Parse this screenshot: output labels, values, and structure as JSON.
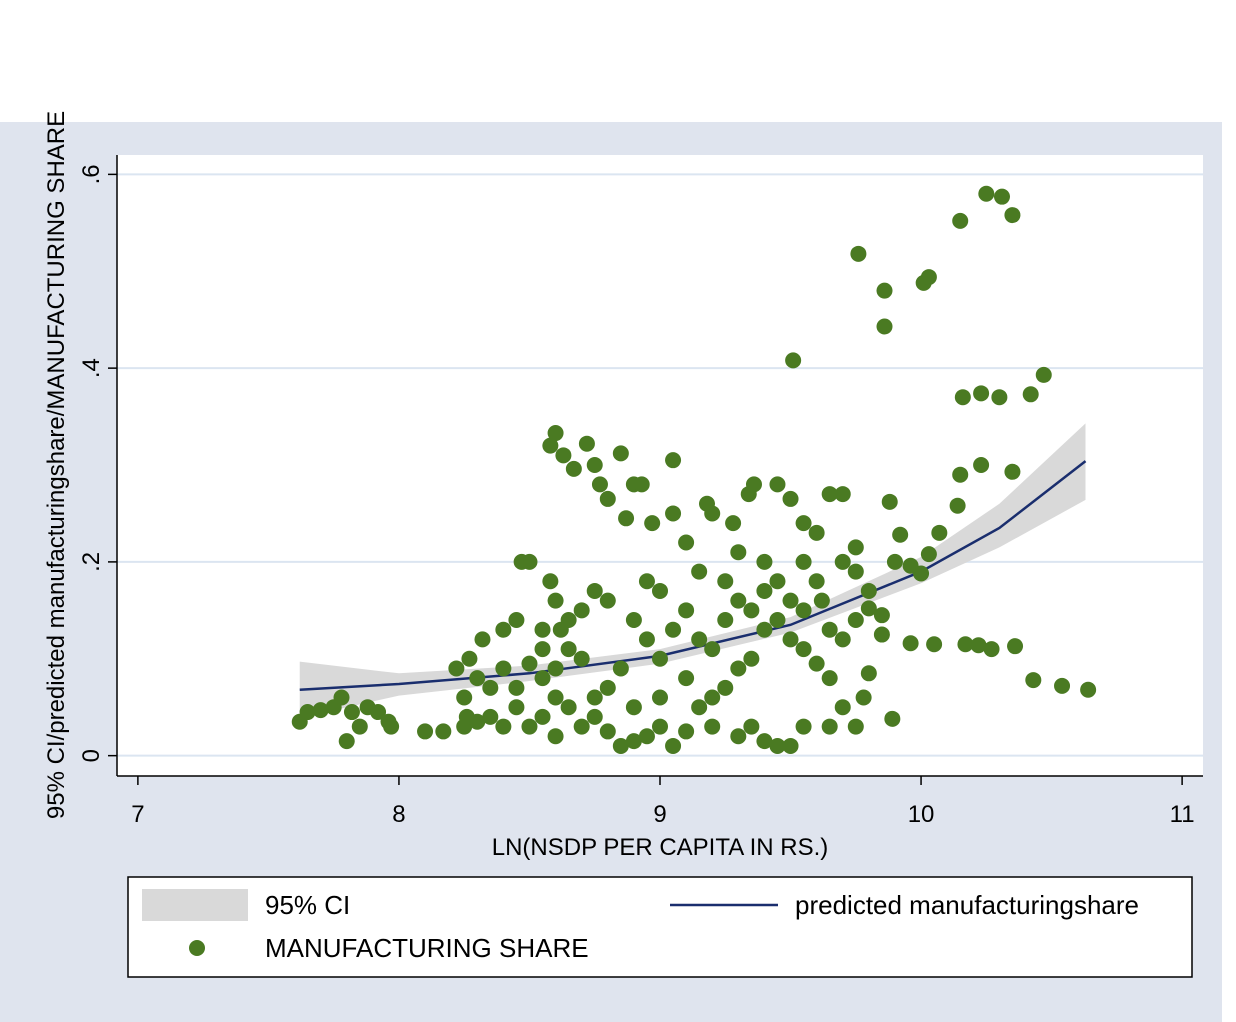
{
  "chart_data": {
    "type": "scatter",
    "x_label": "LN(NSDP PER CAPITA IN RS.)",
    "y_label": "95% CI/predicted manufacturingshare/MANUFACTURING SHARE",
    "xlim": [
      6.92,
      11.08
    ],
    "ylim": [
      -0.021,
      0.62
    ],
    "xticks": [
      7,
      8,
      9,
      10,
      11
    ],
    "yticks": [
      0,
      {
        "value": 0.2,
        "label": ".2"
      },
      {
        "value": 0.4,
        "label": ".4"
      },
      {
        "value": 0.6,
        "label": ".6"
      }
    ],
    "grid": true,
    "series": [
      {
        "name": "95% CI",
        "type": "band",
        "color": "#d9d9d9",
        "x": [
          7.62,
          8,
          8.5,
          9,
          9.5,
          10,
          10.3,
          10.63
        ],
        "upper": [
          0.097,
          0.085,
          0.093,
          0.11,
          0.143,
          0.205,
          0.26,
          0.343
        ],
        "lower": [
          0.039,
          0.062,
          0.077,
          0.095,
          0.127,
          0.178,
          0.215,
          0.264
        ]
      },
      {
        "name": "predicted manufacturingshare",
        "type": "line",
        "color": "#1a2e6e",
        "x": [
          7.62,
          8,
          8.5,
          9,
          9.5,
          10,
          10.3,
          10.63
        ],
        "values": [
          0.068,
          0.074,
          0.085,
          0.103,
          0.135,
          0.19,
          0.235,
          0.304
        ]
      },
      {
        "name": "MANUFACTURING SHARE",
        "type": "scatter",
        "color": "#4a7a22",
        "x": [
          10.25,
          10.31,
          10.35,
          10.15,
          9.76,
          9.86,
          10.01,
          10.03,
          9.86,
          9.51,
          10.47,
          10.16,
          10.23,
          10.3,
          10.42,
          10.35,
          10.23,
          10.15,
          10.14,
          10.07,
          10.03,
          10.0,
          9.96,
          9.92,
          9.88,
          10.36,
          10.27,
          10.22,
          10.17,
          10.05,
          9.96,
          10.43,
          10.54,
          10.64,
          9.89,
          9.8,
          9.85,
          9.75,
          9.7,
          7.62,
          7.65,
          7.7,
          7.75,
          7.78,
          7.8,
          7.82,
          7.85,
          7.88,
          7.92,
          7.96,
          7.97,
          8.1,
          8.17,
          8.25,
          8.26,
          8.3,
          8.35,
          8.22,
          8.27,
          8.32,
          8.4,
          8.45,
          8.47,
          8.5,
          8.55,
          8.55,
          8.58,
          8.6,
          8.63,
          8.67,
          8.72,
          8.75,
          8.77,
          8.8,
          8.85,
          8.87,
          8.9,
          8.93,
          8.97,
          9.05,
          9.05,
          9.1,
          9.18,
          9.2,
          9.28,
          9.36,
          9.34,
          9.45,
          9.5,
          9.55,
          9.6,
          9.65,
          9.55,
          9.6,
          9.62,
          9.7,
          9.75,
          9.8,
          9.85,
          9.9,
          9.3,
          9.25,
          9.4,
          9.45,
          9.15,
          9.0,
          8.95,
          8.8,
          8.75,
          8.7,
          8.65,
          8.6,
          8.58,
          8.62,
          8.65,
          8.7,
          8.6,
          8.55,
          8.5,
          8.45,
          8.4,
          8.35,
          8.3,
          8.25,
          8.6,
          8.65,
          8.7,
          8.8,
          8.85,
          8.9,
          8.95,
          9.0,
          9.05,
          9.1,
          9.2,
          9.3,
          9.35,
          9.4,
          9.45,
          9.5,
          9.55,
          9.65,
          9.7,
          9.75,
          9.8,
          9.78,
          9.65,
          9.6,
          9.55,
          9.5,
          9.45,
          9.4,
          9.35,
          9.3,
          9.25,
          9.2,
          9.15,
          9.1,
          9.0,
          8.95,
          8.9,
          8.85,
          8.8,
          8.75,
          9.05,
          9.1,
          9.15,
          9.2,
          9.25,
          9.3,
          9.35,
          9.4,
          9.5,
          9.55,
          9.65,
          9.7,
          9.75,
          8.55,
          8.5,
          8.45,
          8.4,
          9.0,
          8.9,
          8.6,
          8.75
        ],
        "values": [
          0.58,
          0.577,
          0.558,
          0.552,
          0.518,
          0.48,
          0.488,
          0.494,
          0.443,
          0.408,
          0.393,
          0.37,
          0.374,
          0.37,
          0.373,
          0.293,
          0.3,
          0.29,
          0.258,
          0.23,
          0.208,
          0.188,
          0.196,
          0.228,
          0.262,
          0.113,
          0.11,
          0.114,
          0.115,
          0.115,
          0.116,
          0.078,
          0.072,
          0.068,
          0.038,
          0.152,
          0.125,
          0.215,
          0.27,
          0.035,
          0.045,
          0.047,
          0.05,
          0.06,
          0.015,
          0.045,
          0.03,
          0.05,
          0.045,
          0.035,
          0.03,
          0.025,
          0.025,
          0.03,
          0.04,
          0.035,
          0.04,
          0.09,
          0.1,
          0.12,
          0.13,
          0.14,
          0.2,
          0.2,
          0.11,
          0.13,
          0.32,
          0.333,
          0.31,
          0.296,
          0.322,
          0.3,
          0.28,
          0.265,
          0.312,
          0.245,
          0.28,
          0.28,
          0.24,
          0.305,
          0.25,
          0.22,
          0.26,
          0.25,
          0.24,
          0.28,
          0.27,
          0.28,
          0.265,
          0.24,
          0.23,
          0.27,
          0.2,
          0.18,
          0.16,
          0.2,
          0.19,
          0.17,
          0.145,
          0.2,
          0.21,
          0.18,
          0.2,
          0.18,
          0.19,
          0.17,
          0.18,
          0.16,
          0.17,
          0.15,
          0.14,
          0.16,
          0.18,
          0.13,
          0.11,
          0.1,
          0.09,
          0.08,
          0.095,
          0.07,
          0.09,
          0.07,
          0.08,
          0.06,
          0.06,
          0.05,
          0.03,
          0.025,
          0.01,
          0.015,
          0.02,
          0.03,
          0.01,
          0.025,
          0.03,
          0.02,
          0.03,
          0.015,
          0.01,
          0.01,
          0.03,
          0.03,
          0.05,
          0.03,
          0.085,
          0.06,
          0.08,
          0.095,
          0.11,
          0.12,
          0.14,
          0.13,
          0.1,
          0.09,
          0.07,
          0.06,
          0.05,
          0.08,
          0.1,
          0.12,
          0.14,
          0.09,
          0.07,
          0.06,
          0.13,
          0.15,
          0.12,
          0.11,
          0.14,
          0.16,
          0.15,
          0.17,
          0.16,
          0.15,
          0.13,
          0.12,
          0.14,
          0.04,
          0.03,
          0.05,
          0.03,
          0.06,
          0.05,
          0.02,
          0.04
        ]
      }
    ]
  }
}
